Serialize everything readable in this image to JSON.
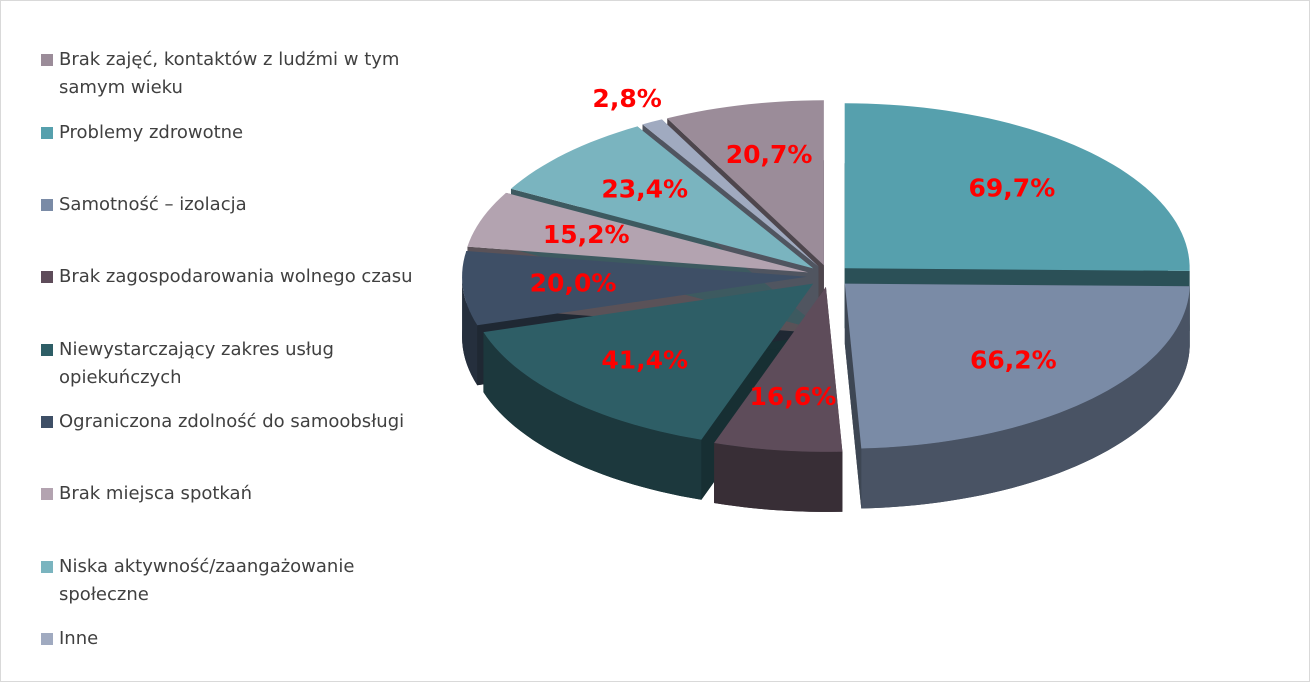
{
  "chart_data": {
    "type": "pie",
    "categories": [
      "Brak zajęć, kontaktów z ludźmi w tym samym wieku",
      "Problemy zdrowotne",
      "Samotność – izolacja",
      "Brak zagospodarowania wolnego czasu",
      "Niewystarczający zakres usług opiekuńczych",
      "Ograniczona zdolność do samoobsługi",
      "Brak miejsca spotkań",
      "Niska aktywność/zaangażowanie społeczne",
      "Inne"
    ],
    "values": [
      20.7,
      69.7,
      66.2,
      16.6,
      41.4,
      20.0,
      15.2,
      23.4,
      2.8
    ],
    "value_labels": [
      "20,7%",
      "69,7%",
      "66,2%",
      "16,6%",
      "41,4%",
      "20,0%",
      "15,2%",
      "23,4%",
      "2,8%"
    ],
    "colors": [
      "#9b8c99",
      "#56a0ad",
      "#7a8ba6",
      "#5e4c5a",
      "#2e5e66",
      "#3e4f66",
      "#b3a3b0",
      "#7ab4bf",
      "#a0aac0"
    ],
    "legend": "left"
  }
}
